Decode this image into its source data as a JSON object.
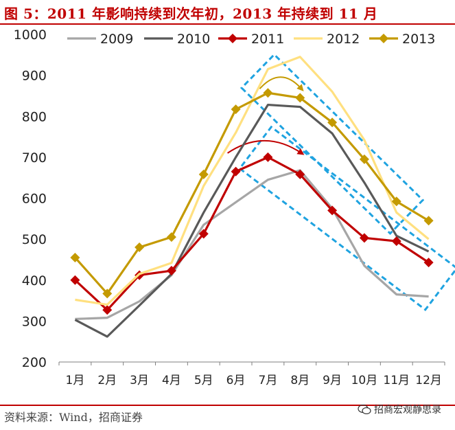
{
  "figure": {
    "title": "图 5：2011 年影响持续到次年初，2013 年持续到 11 月",
    "source": "资料来源：Wind，招商证券",
    "brand": "招商宏观静思录"
  },
  "colors": {
    "2009": "#a6a6a6",
    "2010": "#595959",
    "2011": "#c00000",
    "2012": "#ffe080",
    "2013": "#c49a00",
    "highlight_box": "#1fa3e0",
    "title": "#c00000"
  },
  "chart_data": {
    "type": "line",
    "title": "",
    "xlabel": "",
    "ylabel": "",
    "ylim": [
      200,
      1000
    ],
    "yticks": [
      200,
      300,
      400,
      500,
      600,
      700,
      800,
      900,
      1000
    ],
    "grid": false,
    "legend_position": "top",
    "categories": [
      "1月",
      "2月",
      "3月",
      "4月",
      "5月",
      "6月",
      "7月",
      "8月",
      "9月",
      "10月",
      "11月",
      "12月"
    ],
    "series": [
      {
        "name": "2009",
        "marker": "none",
        "values": [
          305,
          308,
          348,
          412,
          535,
          590,
          645,
          668,
          575,
          435,
          365,
          360
        ]
      },
      {
        "name": "2010",
        "marker": "none",
        "values": [
          303,
          262,
          338,
          415,
          565,
          700,
          828,
          823,
          758,
          638,
          508,
          470
        ]
      },
      {
        "name": "2011",
        "marker": "diamond",
        "values": [
          400,
          327,
          412,
          423,
          513,
          665,
          700,
          658,
          570,
          503,
          495,
          443
        ]
      },
      {
        "name": "2012",
        "marker": "none",
        "values": [
          352,
          340,
          415,
          442,
          630,
          760,
          915,
          945,
          860,
          742,
          565,
          500
        ]
      },
      {
        "name": "2013",
        "marker": "diamond",
        "values": [
          455,
          367,
          480,
          505,
          658,
          817,
          857,
          845,
          785,
          695,
          592,
          545
        ]
      }
    ]
  }
}
